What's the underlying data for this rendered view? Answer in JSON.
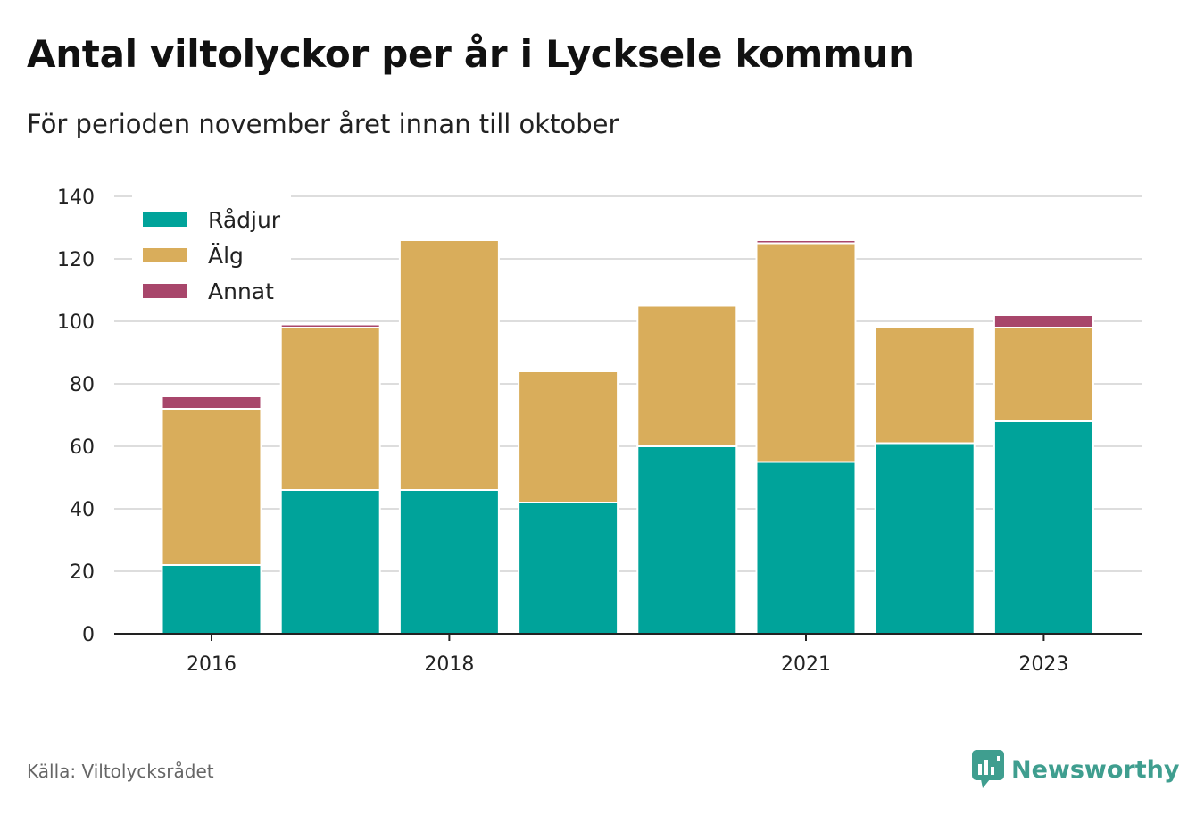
{
  "title": "Antal viltolyckor per år i Lycksele kommun",
  "subtitle": "För perioden november året innan till oktober",
  "source": "Källa: Viltolycksrådet",
  "brand": "Newsworthy",
  "colors": {
    "radjur": "#00a39a",
    "alg": "#d9ad5b",
    "annat": "#a8466b",
    "grid": "#dddddd",
    "axis": "#222222",
    "brand": "#3f9e8f"
  },
  "chart_data": {
    "type": "bar",
    "stacked": true,
    "categories": [
      "2016",
      "2017",
      "2018",
      "2019",
      "2020",
      "2021",
      "2022",
      "2023"
    ],
    "tick_labels": [
      "2016",
      "",
      "2018",
      "",
      "",
      "2021",
      "",
      "2023"
    ],
    "series": [
      {
        "name": "Rådjur",
        "values": [
          22,
          46,
          46,
          42,
          60,
          55,
          61,
          68
        ]
      },
      {
        "name": "Älg",
        "values": [
          50,
          52,
          80,
          42,
          45,
          70,
          37,
          30
        ]
      },
      {
        "name": "Annat",
        "values": [
          4,
          1,
          0,
          0,
          0,
          1,
          0,
          4
        ]
      }
    ],
    "ylim": [
      0,
      140
    ],
    "yticks": [
      0,
      20,
      40,
      60,
      80,
      100,
      120,
      140
    ],
    "grid": true,
    "legend_position": "top-left"
  }
}
